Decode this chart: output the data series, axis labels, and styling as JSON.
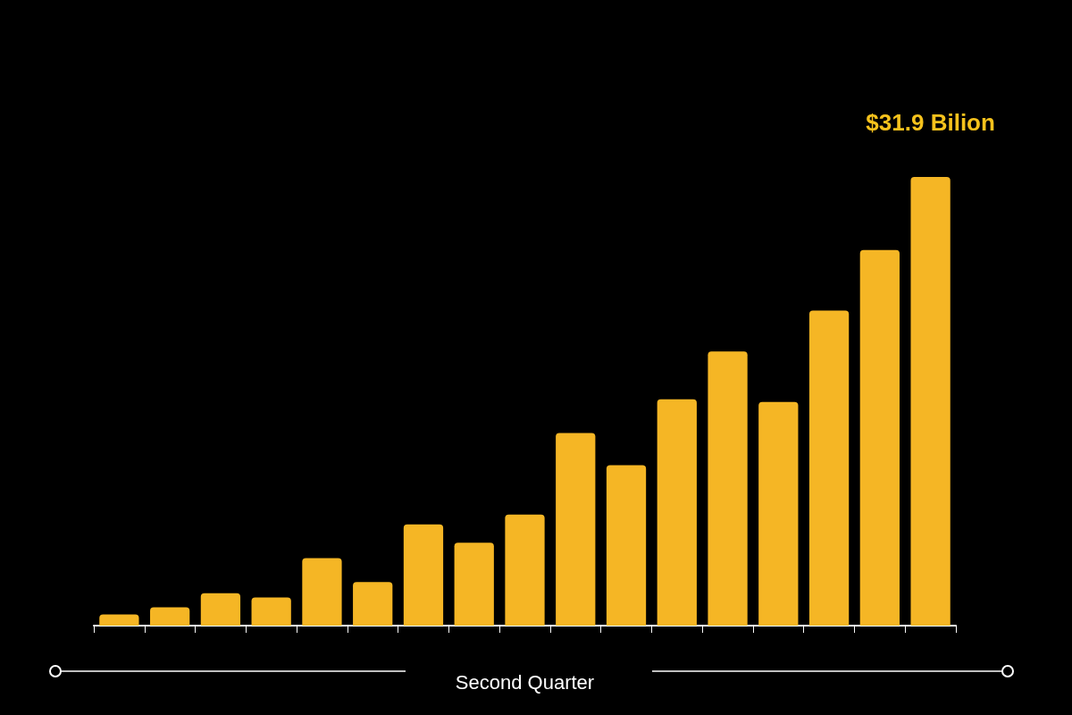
{
  "chart_data": {
    "type": "bar",
    "xlabel": "Second Quarter",
    "categories": [
      null,
      null,
      null,
      null,
      null,
      null,
      null,
      null,
      null,
      null,
      null,
      null,
      null,
      null,
      null,
      null,
      null
    ],
    "values": [
      0.8,
      1.3,
      2.3,
      2.0,
      4.8,
      3.1,
      7.2,
      5.9,
      7.9,
      13.7,
      11.4,
      16.1,
      19.5,
      15.9,
      22.4,
      26.7,
      31.9
    ],
    "value_labels": [
      null,
      null,
      null,
      null,
      null,
      null,
      null,
      null,
      null,
      null,
      null,
      null,
      null,
      null,
      null,
      null,
      "$31.9 Bilion"
    ],
    "color": "#f5b625"
  }
}
